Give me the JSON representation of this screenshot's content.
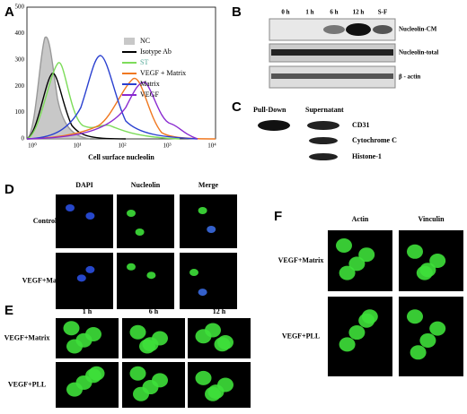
{
  "panels": {
    "A": {
      "label": "A",
      "y_ticks": [
        "500",
        "400",
        "300",
        "200",
        "100",
        "0"
      ],
      "x_ticks": [
        "10⁰",
        "10¹",
        "10²",
        "10³",
        "10⁴"
      ],
      "x_axis_label": "Cell surface nucleolin",
      "legend": [
        "NC",
        "Isotype Ab",
        "ST",
        "VEGF + Matrix",
        "Matrix",
        "VEGF"
      ]
    },
    "B": {
      "label": "B",
      "columns": [
        "0 h",
        "1 h",
        "6 h",
        "12 h",
        "S-F"
      ],
      "rows": [
        "Nucleolin-CM",
        "Nucleolin-total",
        "β - actin"
      ]
    },
    "C": {
      "label": "C",
      "columns": [
        "Pull-Down",
        "Supernatant"
      ],
      "rows": [
        "CD31",
        "Cytochrome C",
        "Histone-1"
      ]
    },
    "D": {
      "label": "D",
      "columns": [
        "DAPI",
        "Nucleolin",
        "Merge"
      ],
      "rows": [
        "Control",
        "VEGF+Matrix"
      ]
    },
    "E": {
      "label": "E",
      "columns": [
        "1 h",
        "6 h",
        "12 h"
      ],
      "rows": [
        "VEGF+Matrix",
        "VEGF+PLL"
      ]
    },
    "F": {
      "label": "F",
      "columns": [
        "Actin",
        "Vinculin"
      ],
      "rows": [
        "VEGF+Matrix",
        "VEGF+PLL"
      ]
    }
  }
}
